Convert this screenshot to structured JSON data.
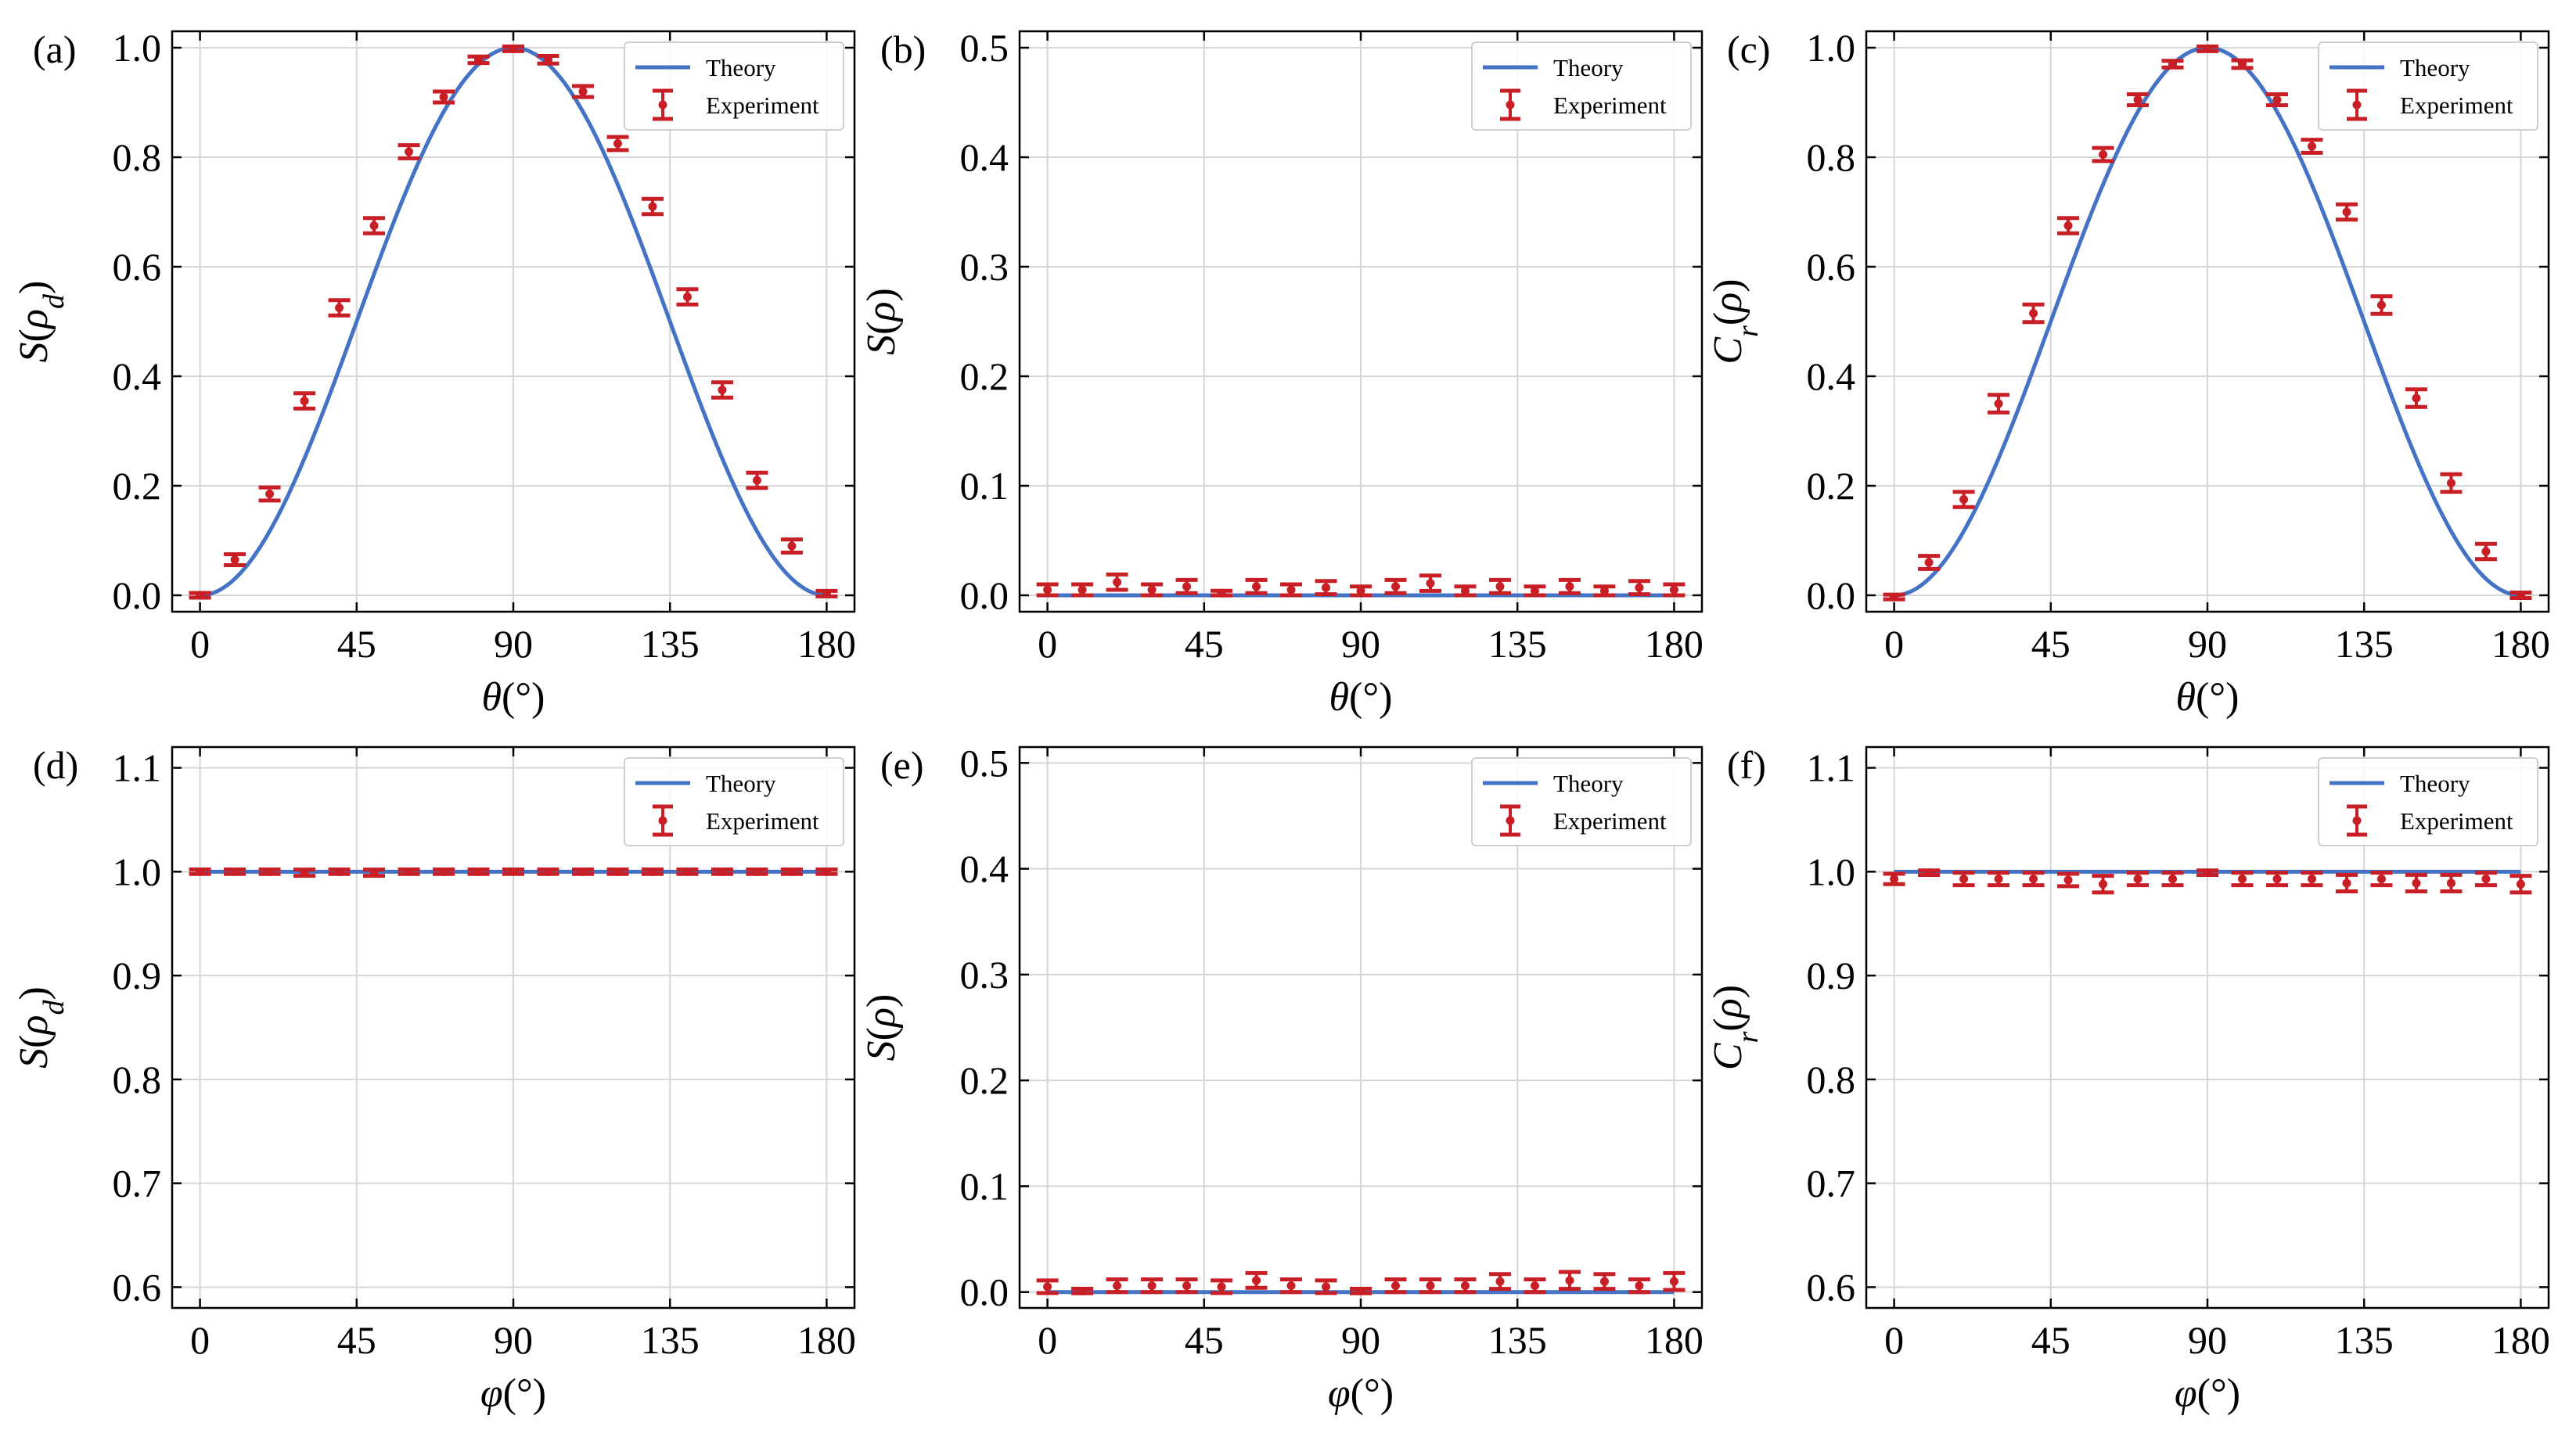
{
  "colors": {
    "theory": "#4472c4",
    "experiment": "#c81e25",
    "grid": "#d6d6d6"
  },
  "chart_data": [
    {
      "panel": "(a)",
      "type": "line",
      "xlabel": "θ(°)",
      "ylabel": "S(ρd)",
      "xlim": [
        -8,
        188
      ],
      "ylim": [
        -0.03,
        1.03
      ],
      "xticks": [
        0,
        45,
        90,
        135,
        180
      ],
      "xtick_labels": [
        "0",
        "45",
        "90",
        "135",
        "180"
      ],
      "yticks": [
        0,
        0.2,
        0.4,
        0.6,
        0.8,
        1.0
      ],
      "ytick_labels": [
        "0.0",
        "0.2",
        "0.4",
        "0.6",
        "0.8",
        "1.0"
      ],
      "legend": {
        "theory": "Theory",
        "experiment": "Experiment",
        "loc": "top-right"
      },
      "theory": "sin2",
      "x": [
        0,
        10,
        20,
        30,
        40,
        50,
        60,
        70,
        80,
        90,
        100,
        110,
        120,
        130,
        140,
        150,
        160,
        170,
        180
      ],
      "y": [
        0.0,
        0.065,
        0.185,
        0.355,
        0.525,
        0.675,
        0.81,
        0.91,
        0.978,
        0.998,
        0.978,
        0.92,
        0.825,
        0.71,
        0.545,
        0.375,
        0.21,
        0.09,
        0.003
      ],
      "err": [
        0.004,
        0.01,
        0.012,
        0.014,
        0.014,
        0.014,
        0.012,
        0.01,
        0.006,
        0.003,
        0.007,
        0.01,
        0.012,
        0.014,
        0.014,
        0.014,
        0.014,
        0.012,
        0.005
      ]
    },
    {
      "panel": "(b)",
      "type": "line",
      "xlabel": "θ(°)",
      "ylabel": "S(ρ)",
      "xlim": [
        -8,
        188
      ],
      "ylim": [
        -0.015,
        0.515
      ],
      "xticks": [
        0,
        45,
        90,
        135,
        180
      ],
      "xtick_labels": [
        "0",
        "45",
        "90",
        "135",
        "180"
      ],
      "yticks": [
        0,
        0.1,
        0.2,
        0.3,
        0.4,
        0.5
      ],
      "ytick_labels": [
        "0.0",
        "0.1",
        "0.2",
        "0.3",
        "0.4",
        "0.5"
      ],
      "legend": {
        "theory": "Theory",
        "experiment": "Experiment",
        "loc": "top-right"
      },
      "theory": "zero",
      "x": [
        0,
        10,
        20,
        30,
        40,
        50,
        60,
        70,
        80,
        90,
        100,
        110,
        120,
        130,
        140,
        150,
        160,
        170,
        180
      ],
      "y": [
        0.005,
        0.005,
        0.012,
        0.005,
        0.008,
        0.002,
        0.008,
        0.005,
        0.007,
        0.004,
        0.008,
        0.011,
        0.004,
        0.008,
        0.004,
        0.008,
        0.004,
        0.007,
        0.005
      ],
      "err": [
        0.005,
        0.005,
        0.007,
        0.005,
        0.006,
        0.002,
        0.006,
        0.005,
        0.006,
        0.004,
        0.006,
        0.007,
        0.004,
        0.006,
        0.004,
        0.006,
        0.004,
        0.006,
        0.005
      ]
    },
    {
      "panel": "(c)",
      "type": "line",
      "xlabel": "θ(°)",
      "ylabel": "Cr(ρ)",
      "xlim": [
        -8,
        188
      ],
      "ylim": [
        -0.03,
        1.03
      ],
      "xticks": [
        0,
        45,
        90,
        135,
        180
      ],
      "xtick_labels": [
        "0",
        "45",
        "90",
        "135",
        "180"
      ],
      "yticks": [
        0,
        0.2,
        0.4,
        0.6,
        0.8,
        1.0
      ],
      "ytick_labels": [
        "0.0",
        "0.2",
        "0.4",
        "0.6",
        "0.8",
        "1.0"
      ],
      "legend": {
        "theory": "Theory",
        "experiment": "Experiment",
        "loc": "top-right"
      },
      "theory": "sin2",
      "x": [
        0,
        10,
        20,
        30,
        40,
        50,
        60,
        70,
        80,
        90,
        100,
        110,
        120,
        130,
        140,
        150,
        160,
        170,
        180
      ],
      "y": [
        -0.003,
        0.06,
        0.175,
        0.35,
        0.515,
        0.675,
        0.805,
        0.905,
        0.97,
        0.998,
        0.97,
        0.905,
        0.82,
        0.7,
        0.53,
        0.36,
        0.205,
        0.08,
        0.0
      ],
      "err": [
        0.004,
        0.012,
        0.014,
        0.016,
        0.016,
        0.014,
        0.012,
        0.01,
        0.006,
        0.003,
        0.007,
        0.01,
        0.012,
        0.014,
        0.016,
        0.016,
        0.016,
        0.014,
        0.005
      ]
    },
    {
      "panel": "(d)",
      "type": "line",
      "xlabel": "φ(°)",
      "ylabel": "S(ρd)",
      "xlim": [
        -8,
        188
      ],
      "ylim": [
        0.58,
        1.12
      ],
      "xticks": [
        0,
        45,
        90,
        135,
        180
      ],
      "xtick_labels": [
        "0",
        "45",
        "90",
        "135",
        "180"
      ],
      "yticks": [
        0.6,
        0.7,
        0.8,
        0.9,
        1.0,
        1.1
      ],
      "ytick_labels": [
        "0.6",
        "0.7",
        "0.8",
        "0.9",
        "1.0",
        "1.1"
      ],
      "legend": {
        "theory": "Theory",
        "experiment": "Experiment",
        "loc": "top-right"
      },
      "theory": "one",
      "x": [
        0,
        10,
        20,
        30,
        40,
        50,
        60,
        70,
        80,
        90,
        100,
        110,
        120,
        130,
        140,
        150,
        160,
        170,
        180
      ],
      "y": [
        1.0,
        1.0,
        1.0,
        0.999,
        1.0,
        0.999,
        1.0,
        1.0,
        1.0,
        1.0,
        1.0,
        1.0,
        1.0,
        1.0,
        1.0,
        1.0,
        1.0,
        1.0,
        1.0
      ],
      "err": [
        0.002,
        0.002,
        0.002,
        0.003,
        0.002,
        0.003,
        0.002,
        0.002,
        0.002,
        0.002,
        0.002,
        0.002,
        0.002,
        0.002,
        0.002,
        0.002,
        0.002,
        0.002,
        0.002
      ]
    },
    {
      "panel": "(e)",
      "type": "line",
      "xlabel": "φ(°)",
      "ylabel": "S(ρ)",
      "xlim": [
        -8,
        188
      ],
      "ylim": [
        -0.015,
        0.515
      ],
      "xticks": [
        0,
        45,
        90,
        135,
        180
      ],
      "xtick_labels": [
        "0",
        "45",
        "90",
        "135",
        "180"
      ],
      "yticks": [
        0,
        0.1,
        0.2,
        0.3,
        0.4,
        0.5
      ],
      "ytick_labels": [
        "0.0",
        "0.1",
        "0.2",
        "0.3",
        "0.4",
        "0.5"
      ],
      "legend": {
        "theory": "Theory",
        "experiment": "Experiment",
        "loc": "top-right"
      },
      "theory": "zero",
      "x": [
        0,
        10,
        20,
        30,
        40,
        50,
        60,
        70,
        80,
        90,
        100,
        110,
        120,
        130,
        140,
        150,
        160,
        170,
        180
      ],
      "y": [
        0.005,
        0.001,
        0.006,
        0.006,
        0.006,
        0.005,
        0.011,
        0.006,
        0.005,
        0.001,
        0.006,
        0.006,
        0.006,
        0.01,
        0.006,
        0.011,
        0.01,
        0.006,
        0.01
      ],
      "err": [
        0.006,
        0.002,
        0.006,
        0.006,
        0.006,
        0.006,
        0.007,
        0.006,
        0.006,
        0.002,
        0.006,
        0.006,
        0.006,
        0.007,
        0.006,
        0.008,
        0.007,
        0.006,
        0.008
      ]
    },
    {
      "panel": "(f)",
      "type": "line",
      "xlabel": "φ(°)",
      "ylabel": "Cr(ρ)",
      "xlim": [
        -8,
        188
      ],
      "ylim": [
        0.58,
        1.12
      ],
      "xticks": [
        0,
        45,
        90,
        135,
        180
      ],
      "xtick_labels": [
        "0",
        "45",
        "90",
        "135",
        "180"
      ],
      "yticks": [
        0.6,
        0.7,
        0.8,
        0.9,
        1.0,
        1.1
      ],
      "ytick_labels": [
        "0.6",
        "0.7",
        "0.8",
        "0.9",
        "1.0",
        "1.1"
      ],
      "legend": {
        "theory": "Theory",
        "experiment": "Experiment",
        "loc": "top-right"
      },
      "theory": "one",
      "x": [
        0,
        10,
        20,
        30,
        40,
        50,
        60,
        70,
        80,
        90,
        100,
        110,
        120,
        130,
        140,
        150,
        160,
        170,
        180
      ],
      "y": [
        0.993,
        0.999,
        0.993,
        0.993,
        0.993,
        0.992,
        0.988,
        0.993,
        0.993,
        0.999,
        0.993,
        0.993,
        0.993,
        0.989,
        0.993,
        0.989,
        0.989,
        0.993,
        0.988
      ],
      "err": [
        0.005,
        0.002,
        0.006,
        0.006,
        0.006,
        0.006,
        0.008,
        0.006,
        0.006,
        0.002,
        0.006,
        0.006,
        0.006,
        0.008,
        0.006,
        0.008,
        0.008,
        0.006,
        0.008
      ]
    }
  ]
}
